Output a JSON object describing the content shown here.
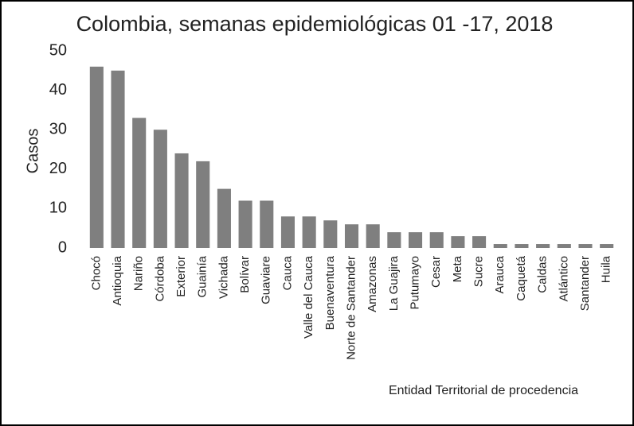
{
  "chart_data": {
    "type": "bar",
    "title": "Colombia, semanas epidemiológicas 01 -17, 2018",
    "y_label": "Casos",
    "x_label": "Entidad Territorial de procedencia",
    "categories": [
      "Chocó",
      "Antioquia",
      "Nariño",
      "Córdoba",
      "Exterior",
      "Guainía",
      "Vichada",
      "Bolívar",
      "Guaviare",
      "Cauca",
      "Valle del Cauca",
      "Buenaventura",
      "Norte de Santander",
      "Amazonas",
      "La Guajira",
      "Putumayo",
      "Cesar",
      "Meta",
      "Sucre",
      "Arauca",
      "Caquetá",
      "Caldas",
      "Atlántico",
      "Santander",
      "Huila"
    ],
    "values": [
      46,
      45,
      33,
      30,
      24,
      22,
      15,
      12,
      12,
      8,
      8,
      7,
      6,
      6,
      4,
      4,
      4,
      3,
      3,
      1,
      1,
      1,
      1,
      1,
      1
    ],
    "color": "#7f7f7f",
    "ylim": [
      0,
      50
    ],
    "yticks": [
      0,
      10,
      20,
      30,
      40,
      50
    ],
    "grid": false
  }
}
